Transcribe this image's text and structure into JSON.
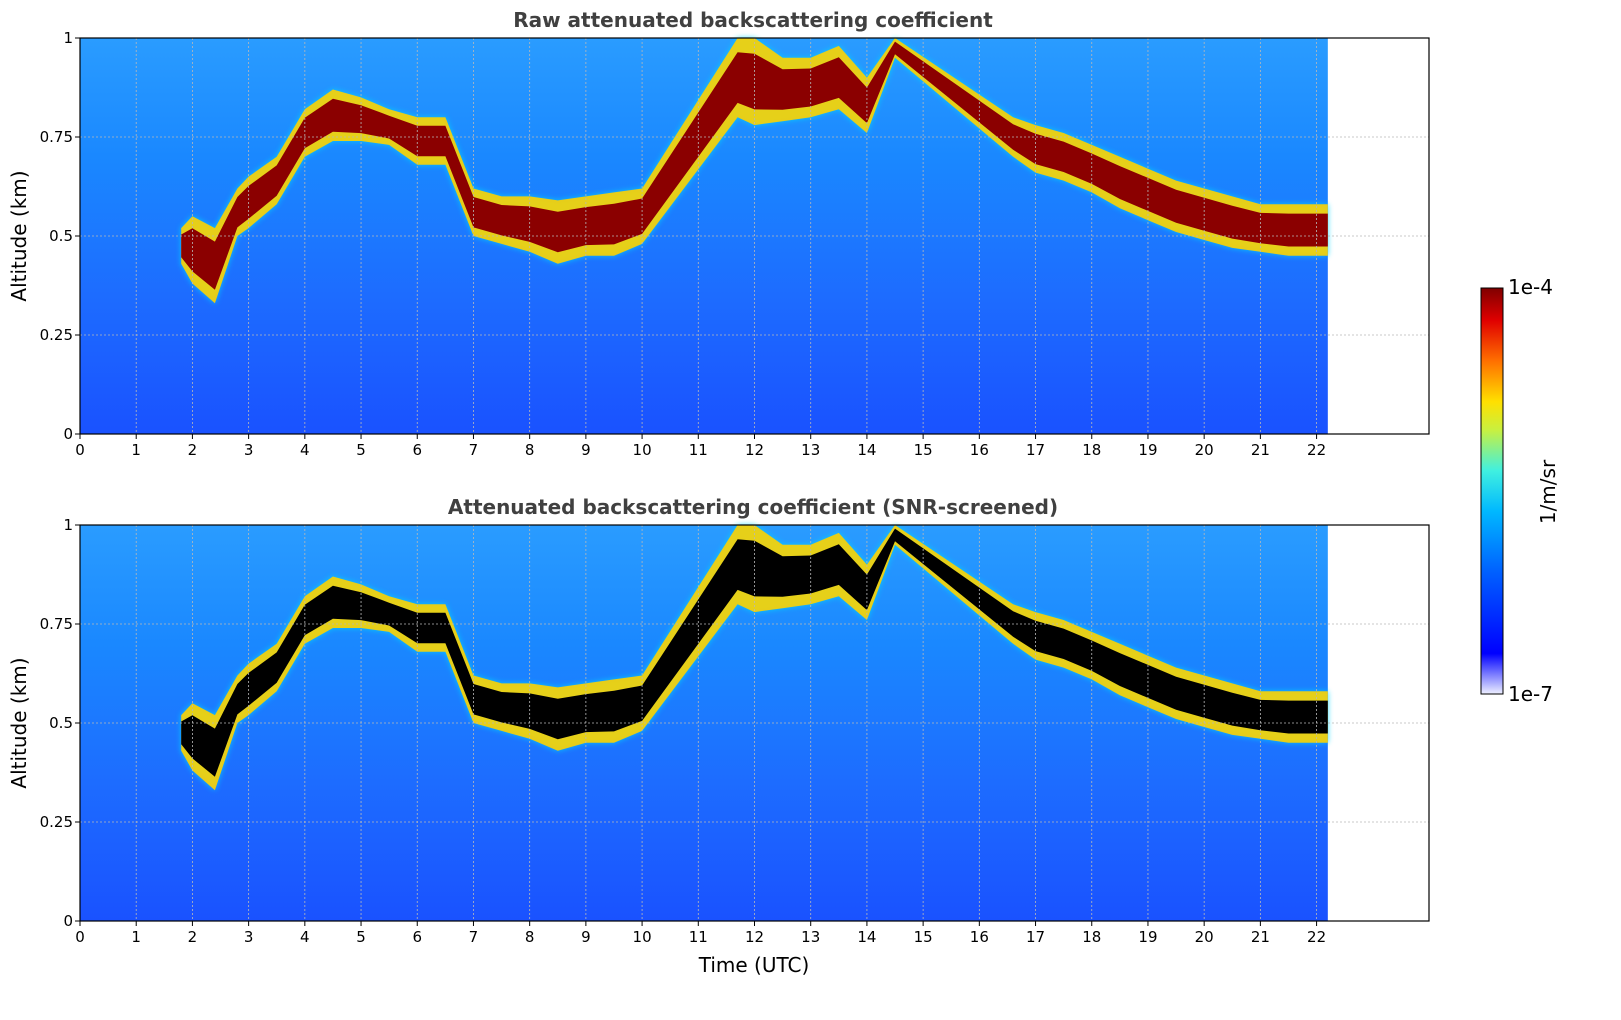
{
  "chart_data": [
    {
      "type": "heatmap",
      "title": "Raw attenuated backscattering coefficient",
      "xlabel": "",
      "ylabel": "Altitude (km)",
      "xlim": [
        0,
        24
      ],
      "ylim": [
        0,
        1
      ],
      "xticks": [
        "0",
        "1",
        "2",
        "3",
        "4",
        "5",
        "6",
        "7",
        "8",
        "9",
        "10",
        "11",
        "12",
        "13",
        "14",
        "15",
        "16",
        "17",
        "18",
        "19",
        "20",
        "21",
        "22"
      ],
      "yticks": [
        "0",
        "0.25",
        "0.5",
        "0.75",
        "1"
      ],
      "grid": true,
      "data_end_time": 22.2,
      "cloud_layer": {
        "time": [
          1.8,
          2.0,
          2.4,
          2.8,
          3.0,
          3.5,
          4.0,
          4.5,
          5.0,
          5.5,
          6.0,
          6.5,
          7.0,
          7.5,
          8.0,
          8.5,
          9.0,
          9.5,
          10.0,
          11.7,
          12.0,
          12.5,
          13.0,
          13.5,
          14.0,
          14.5,
          16.6,
          17.0,
          17.5,
          18.0,
          18.5,
          19.0,
          19.5,
          20.0,
          20.5,
          21.0,
          21.5,
          22.0,
          22.2
        ],
        "bottom": [
          0.43,
          0.38,
          0.33,
          0.5,
          0.52,
          0.58,
          0.7,
          0.74,
          0.74,
          0.73,
          0.68,
          0.68,
          0.5,
          0.48,
          0.46,
          0.43,
          0.45,
          0.45,
          0.48,
          0.8,
          0.78,
          0.79,
          0.8,
          0.82,
          0.76,
          0.95,
          0.7,
          0.66,
          0.64,
          0.61,
          0.57,
          0.54,
          0.51,
          0.49,
          0.47,
          0.46,
          0.45,
          0.45,
          0.45
        ],
        "top": [
          0.52,
          0.55,
          0.52,
          0.62,
          0.65,
          0.7,
          0.82,
          0.87,
          0.85,
          0.82,
          0.8,
          0.8,
          0.62,
          0.6,
          0.6,
          0.59,
          0.6,
          0.61,
          0.62,
          1.0,
          1.0,
          0.95,
          0.95,
          0.98,
          0.9,
          1.0,
          0.8,
          0.78,
          0.76,
          0.73,
          0.7,
          0.67,
          0.64,
          0.62,
          0.6,
          0.58,
          0.58,
          0.58,
          0.58
        ]
      }
    },
    {
      "type": "heatmap",
      "title": "Attenuated backscattering coefficient (SNR-screened)",
      "xlabel": "Time (UTC)",
      "ylabel": "Altitude (km)",
      "xlim": [
        0,
        24
      ],
      "ylim": [
        0,
        1
      ],
      "xticks": [
        "0",
        "1",
        "2",
        "3",
        "4",
        "5",
        "6",
        "7",
        "8",
        "9",
        "10",
        "11",
        "12",
        "13",
        "14",
        "15",
        "16",
        "17",
        "18",
        "19",
        "20",
        "21",
        "22"
      ],
      "yticks": [
        "0",
        "0.25",
        "0.5",
        "0.75",
        "1"
      ],
      "grid": true,
      "data_end_time": 22.2,
      "saturated_color": "#000000"
    }
  ],
  "colorbar": {
    "label": "1/m/sr",
    "max_label": "1e-4",
    "min_label": "1e-7",
    "colors": [
      "#eef0ff",
      "#0000ff",
      "#0060ff",
      "#00b8ff",
      "#40f0e0",
      "#c8f040",
      "#ffe000",
      "#ff7000",
      "#e00000",
      "#800000"
    ]
  }
}
